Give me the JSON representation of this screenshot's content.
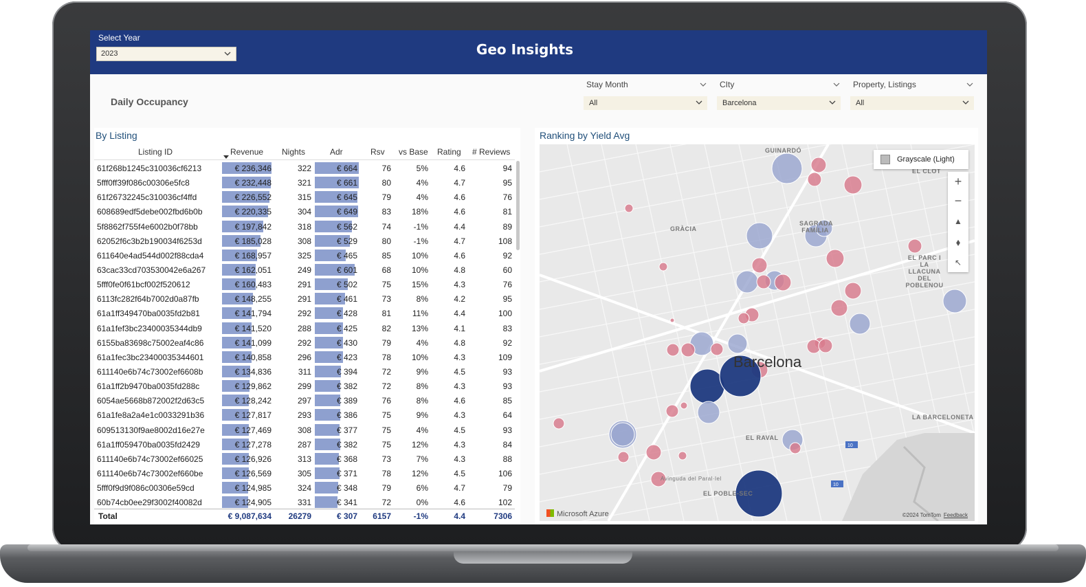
{
  "header": {
    "year_label": "Select Year",
    "year_value": "2023",
    "title": "Geo Insights"
  },
  "daily_occupancy_label": "Daily Occupancy",
  "slicers": [
    {
      "title": "Stay Month",
      "value": "All"
    },
    {
      "title": "CIty",
      "value": "Barcelona"
    },
    {
      "title": "Property, Listings",
      "value": "All"
    }
  ],
  "table": {
    "title": "By Listing",
    "columns": [
      "Listing ID",
      "Revenue",
      "Nights",
      "Adr",
      "Rsv",
      "vs Base",
      "Rating",
      "# Reviews"
    ],
    "rows": [
      [
        "61f268b1245c310036cf6213",
        "€ 236,346",
        "322",
        "€ 664",
        "76",
        "5%",
        "4.6",
        "94"
      ],
      [
        "5fff0ff39f086c00306e5fc8",
        "€ 232,448",
        "321",
        "€ 661",
        "80",
        "4%",
        "4.7",
        "95"
      ],
      [
        "61f26732245c310036cf4ffd",
        "€ 226,552",
        "315",
        "€ 645",
        "79",
        "4%",
        "4.6",
        "76"
      ],
      [
        "608689edf5debe002fbd6b0b",
        "€ 220,335",
        "304",
        "€ 649",
        "83",
        "18%",
        "4.6",
        "81"
      ],
      [
        "5f8862f755f4e6002b0f78bb",
        "€ 197,842",
        "318",
        "€ 562",
        "74",
        "-1%",
        "4.4",
        "89"
      ],
      [
        "62052f6c3b2b190034f6253d",
        "€ 185,028",
        "308",
        "€ 529",
        "80",
        "-1%",
        "4.7",
        "108"
      ],
      [
        "611640e4ad544d002f88cda4",
        "€ 168,957",
        "325",
        "€ 465",
        "85",
        "10%",
        "4.6",
        "92"
      ],
      [
        "63cac33cd703530042e6a267",
        "€ 162,051",
        "249",
        "€ 601",
        "68",
        "10%",
        "4.8",
        "60"
      ],
      [
        "5fff0fe0f61bcf002f520612",
        "€ 160,483",
        "291",
        "€ 502",
        "75",
        "15%",
        "4.3",
        "76"
      ],
      [
        "6113fc282f64b7002d0a87fb",
        "€ 148,255",
        "291",
        "€ 461",
        "73",
        "8%",
        "4.2",
        "95"
      ],
      [
        "61a1ff349470ba0035fd2b81",
        "€ 141,794",
        "292",
        "€ 428",
        "81",
        "11%",
        "4.4",
        "100"
      ],
      [
        "61a1fef3bc23400035344db9",
        "€ 141,520",
        "288",
        "€ 425",
        "82",
        "13%",
        "4.1",
        "83"
      ],
      [
        "6155ba83698c75002eaf4c86",
        "€ 141,099",
        "292",
        "€ 430",
        "79",
        "4%",
        "4.8",
        "92"
      ],
      [
        "61a1fec3bc23400035344601",
        "€ 140,858",
        "296",
        "€ 423",
        "78",
        "10%",
        "4.3",
        "109"
      ],
      [
        "611140e6b74c73002ef6608b",
        "€ 134,836",
        "311",
        "€ 394",
        "72",
        "9%",
        "4.5",
        "93"
      ],
      [
        "61a1ff2b9470ba0035fd288c",
        "€ 129,862",
        "299",
        "€ 382",
        "72",
        "8%",
        "4.3",
        "93"
      ],
      [
        "6054ae5668b872002f2d63c5",
        "€ 128,242",
        "297",
        "€ 389",
        "76",
        "8%",
        "4.6",
        "85"
      ],
      [
        "61a1fe8a2a4e1c0033291b36",
        "€ 127,817",
        "293",
        "€ 386",
        "75",
        "9%",
        "4.3",
        "64"
      ],
      [
        "609513130f9ae8002d16e27e",
        "€ 127,469",
        "308",
        "€ 377",
        "75",
        "4%",
        "4.5",
        "93"
      ],
      [
        "61a1ff059470ba0035fd2429",
        "€ 127,278",
        "287",
        "€ 382",
        "75",
        "12%",
        "4.3",
        "84"
      ],
      [
        "611140e6b74c73002ef66025",
        "€ 126,926",
        "313",
        "€ 368",
        "73",
        "7%",
        "4.3",
        "88"
      ],
      [
        "611140e6b74c73002ef660be",
        "€ 126,569",
        "305",
        "€ 371",
        "78",
        "12%",
        "4.5",
        "106"
      ],
      [
        "5fff0f9d9f086c00306e59cd",
        "€ 124,985",
        "324",
        "€ 348",
        "79",
        "6%",
        "4.7",
        "79"
      ],
      [
        "60b74cb0ee29f3002f40082d",
        "€ 124,905",
        "331",
        "€ 341",
        "72",
        "0%",
        "4.6",
        "102"
      ]
    ],
    "revenue_values": [
      236346,
      232448,
      226552,
      220335,
      197842,
      185028,
      168957,
      162051,
      160483,
      148255,
      141794,
      141520,
      141099,
      140858,
      134836,
      129862,
      128242,
      127817,
      127469,
      127278,
      126926,
      126569,
      124985,
      124905
    ],
    "adr_values": [
      664,
      661,
      645,
      649,
      562,
      529,
      465,
      601,
      502,
      461,
      428,
      425,
      430,
      423,
      394,
      382,
      389,
      386,
      377,
      382,
      368,
      371,
      348,
      341
    ],
    "total": {
      "label": "Total",
      "revenue": "€ 9,087,634",
      "nights": "26279",
      "adr": "€ 307",
      "rsv": "6157",
      "vs_base": "-1%",
      "rating": "4.4",
      "reviews": "7306"
    }
  },
  "map": {
    "title": "Ranking by Yield Avg",
    "style_button": "Grayscale (Light)",
    "city_label": "Barcelona",
    "district_labels": [
      "GUINARDÓ",
      "EL CLOT",
      "GRÀCIA",
      "SAGRADA FAMÍLIA",
      "EL PARC I LA LLACUNA DEL POBLENOU",
      "LA BARCELONETA",
      "EL RAVAL",
      "EL POBLE-SEC",
      "Avinguda del Paral·lel"
    ],
    "highway_labels": [
      "10",
      "10"
    ],
    "attribution": "Microsoft Azure",
    "copyright": "©2024 TomTom",
    "feedback": "Feedback",
    "colors": {
      "high": "#1f3a80",
      "mid": "#9aa6cf",
      "low": "#d87a8c"
    }
  },
  "colors": {
    "header_bg": "#1f3a80",
    "bar": "#8ea0cf"
  }
}
